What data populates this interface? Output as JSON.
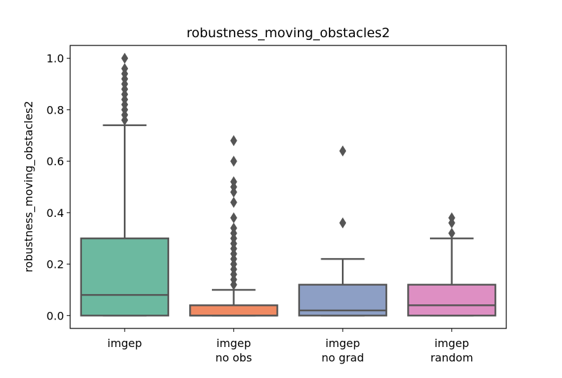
{
  "chart_data": {
    "type": "box",
    "title": "robustness_moving_obstacles2",
    "y_label": "robustness_moving_obstacles2",
    "categories": [
      "imgep",
      "imgep\nno obs",
      "imgep\nno grad",
      "imgep\nrandom"
    ],
    "colors": [
      "#6cb9a0",
      "#f08a62",
      "#8d9fc5",
      "#de8fc3"
    ],
    "boxes": [
      {
        "whislo": 0,
        "q1": 0,
        "median": 0.08,
        "q3": 0.3,
        "whishi": 0.74,
        "fliers": [
          0.76,
          0.78,
          0.8,
          0.82,
          0.84,
          0.86,
          0.88,
          0.9,
          0.92,
          0.94,
          0.96,
          1.0
        ]
      },
      {
        "whislo": 0,
        "q1": 0,
        "median": 0.0,
        "q3": 0.04,
        "whishi": 0.1,
        "fliers": [
          0.12,
          0.14,
          0.16,
          0.18,
          0.2,
          0.22,
          0.24,
          0.26,
          0.28,
          0.3,
          0.32,
          0.34,
          0.38,
          0.44,
          0.48,
          0.5,
          0.52,
          0.6,
          0.68
        ]
      },
      {
        "whislo": 0,
        "q1": 0,
        "median": 0.02,
        "q3": 0.12,
        "whishi": 0.22,
        "fliers": [
          0.36,
          0.64
        ]
      },
      {
        "whislo": 0,
        "q1": 0,
        "median": 0.04,
        "q3": 0.12,
        "whishi": 0.3,
        "fliers": [
          0.32,
          0.36,
          0.38
        ]
      }
    ],
    "ylim": [
      -0.05,
      1.05
    ],
    "yticks": [
      {
        "value": 0,
        "label": "0.0"
      },
      0.2,
      0.4,
      0.6,
      0.8,
      {
        "value": 1,
        "label": "1.0"
      }
    ]
  }
}
